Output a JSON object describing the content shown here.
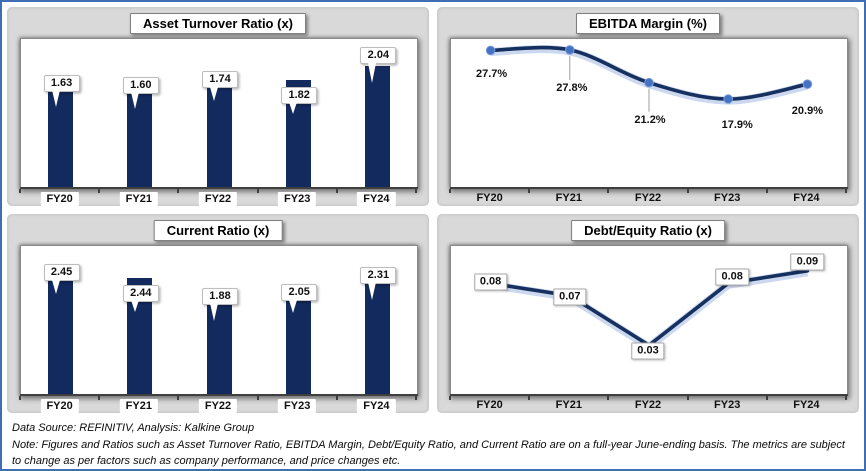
{
  "colors": {
    "outer_border": "#3f6eb5",
    "panel_bg": "#d9d9d9",
    "bar": "#132a5e",
    "line": "#16305f",
    "line_glow": "rgba(68,114,196,0.28)",
    "marker": "#4472c4",
    "marker_ring": "#7c9bd4",
    "axis": "#3f3f3f",
    "leader": "#9e9e9e"
  },
  "chart_data": [
    {
      "type": "bar",
      "title": "Asset Turnover Ratio (x)",
      "categories": [
        "FY20",
        "FY21",
        "FY22",
        "FY23",
        "FY24"
      ],
      "values": [
        1.63,
        1.6,
        1.74,
        1.82,
        2.04
      ],
      "value_labels": [
        "1.63",
        "1.60",
        "1.74",
        "1.82",
        "2.04"
      ],
      "xlabel": "",
      "ylabel": "",
      "ylim": [
        0,
        2.5
      ],
      "grid": false,
      "legend": false
    },
    {
      "type": "line",
      "title": "EBITDA Margin (%)",
      "categories": [
        "FY20",
        "FY21",
        "FY22",
        "FY23",
        "FY24"
      ],
      "values": [
        27.7,
        27.8,
        21.2,
        17.9,
        20.9
      ],
      "value_labels": [
        "27.7%",
        "27.8%",
        "21.2%",
        "17.9%",
        "20.9%"
      ],
      "xlabel": "",
      "ylabel": "",
      "ylim": [
        0,
        30
      ],
      "smooth": true,
      "markers": true,
      "grid": false,
      "legend": false
    },
    {
      "type": "bar",
      "title": "Current Ratio (x)",
      "categories": [
        "FY20",
        "FY21",
        "FY22",
        "FY23",
        "FY24"
      ],
      "values": [
        2.45,
        2.44,
        1.88,
        2.05,
        2.31
      ],
      "value_labels": [
        "2.45",
        "2.44",
        "1.88",
        "2.05",
        "2.31"
      ],
      "xlabel": "",
      "ylabel": "",
      "ylim": [
        0,
        3.1
      ],
      "grid": false,
      "legend": false
    },
    {
      "type": "line",
      "title": "Debt/Equity Ratio (x)",
      "categories": [
        "FY20",
        "FY21",
        "FY22",
        "FY23",
        "FY24"
      ],
      "values": [
        0.08,
        0.07,
        0.03,
        0.08,
        0.09
      ],
      "value_labels": [
        "0.08",
        "0.07",
        "0.03",
        "0.08",
        "0.09"
      ],
      "xlabel": "",
      "ylabel": "",
      "ylim": [
        -0.01,
        0.11
      ],
      "smooth": false,
      "markers": false,
      "grid": false,
      "legend": false
    }
  ],
  "footer": {
    "source": "Data Source: REFINITIV, Analysis: Kalkine Group",
    "note": "Note: Figures and Ratios such as Asset Turnover Ratio, EBITDA Margin, Debt/Equity Ratio, and Current Ratio  are on a full-year June-ending basis. The metrics are subject to change as per factors such as company performance, and price changes etc."
  }
}
